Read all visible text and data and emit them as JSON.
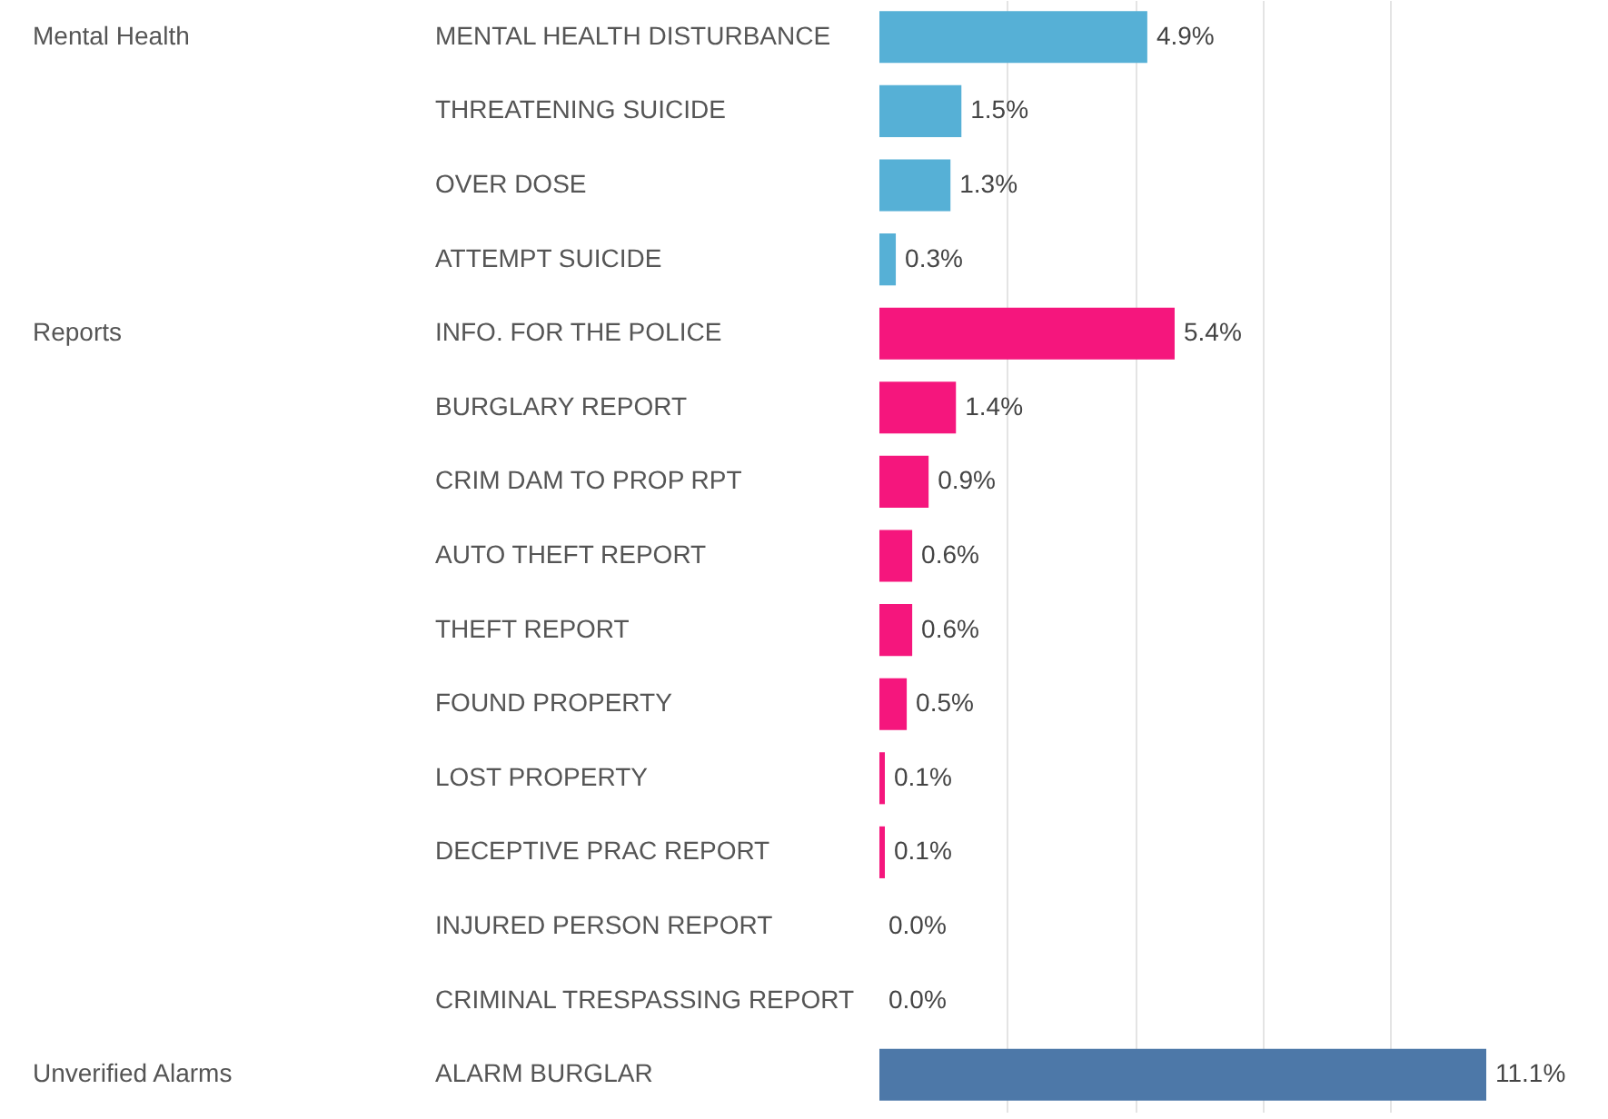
{
  "chart_data": {
    "type": "bar",
    "orientation": "horizontal",
    "categories": [
      "MENTAL HEALTH DISTURBANCE",
      "THREATENING SUICIDE",
      "OVER DOSE",
      "ATTEMPT SUICIDE",
      "INFO. FOR THE POLICE",
      "BURGLARY REPORT",
      "CRIM DAM TO PROP RPT",
      "AUTO THEFT REPORT",
      "THEFT REPORT",
      "FOUND PROPERTY",
      "LOST PROPERTY",
      "DECEPTIVE PRAC REPORT",
      "INJURED PERSON REPORT",
      "CRIMINAL TRESPASSING REPORT",
      "ALARM BURGLAR"
    ],
    "values": [
      4.9,
      1.5,
      1.3,
      0.3,
      5.4,
      1.4,
      0.9,
      0.6,
      0.6,
      0.5,
      0.1,
      0.1,
      0.0,
      0.0,
      11.1
    ],
    "value_labels": [
      "4.9%",
      "1.5%",
      "1.3%",
      "0.3%",
      "5.4%",
      "1.4%",
      "0.9%",
      "0.6%",
      "0.6%",
      "0.5%",
      "0.1%",
      "0.1%",
      "0.0%",
      "0.0%",
      "11.1%"
    ],
    "colors": [
      "#56b0d6",
      "#56b0d6",
      "#56b0d6",
      "#56b0d6",
      "#f5167d",
      "#f5167d",
      "#f5167d",
      "#f5167d",
      "#f5167d",
      "#f5167d",
      "#f5167d",
      "#f5167d",
      "#f5167d",
      "#f5167d",
      "#4d78a8"
    ],
    "annotations": [
      "Mental Health",
      "Reports",
      "Unverified Alarms"
    ],
    "xticks": [
      {
        "value": 2.33,
        "label": null
      },
      {
        "value": 4.67,
        "label": null
      },
      {
        "value": 7,
        "label": null
      },
      {
        "value": 9.33,
        "label": null
      }
    ],
    "grid": "x",
    "tick_labels": "y",
    "legend": false
  }
}
